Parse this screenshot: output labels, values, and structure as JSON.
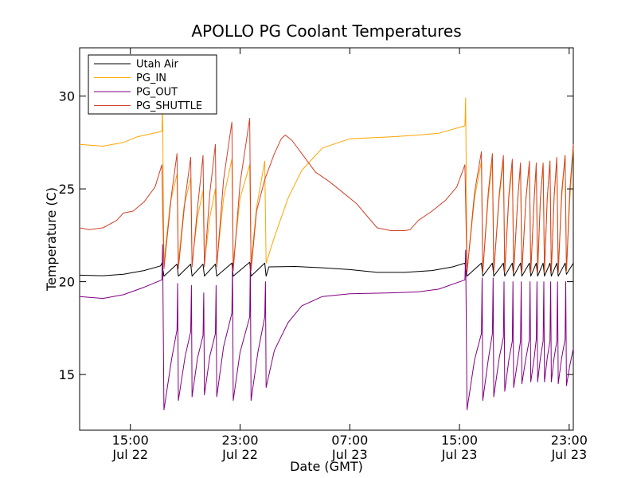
{
  "chart_data": {
    "type": "line",
    "title": "APOLLO PG Coolant Temperatures",
    "xlabel": "Date (GMT)",
    "ylabel": "Temperature (C)",
    "x_unit": "hours since Jul 22 00:00 GMT",
    "xlim": [
      11.3,
      47.3
    ],
    "ylim": [
      12,
      32.6
    ],
    "grid": false,
    "legend_position": "top-left",
    "x_ticks": [
      {
        "value": 15,
        "line1": "15:00",
        "line2": "Jul 22"
      },
      {
        "value": 23,
        "line1": "23:00",
        "line2": "Jul 22"
      },
      {
        "value": 31,
        "line1": "07:00",
        "line2": "Jul 23"
      },
      {
        "value": 39,
        "line1": "15:00",
        "line2": "Jul 23"
      },
      {
        "value": 47,
        "line1": "23:00",
        "line2": "Jul 23"
      }
    ],
    "y_ticks": [
      {
        "value": 15,
        "label": "15"
      },
      {
        "value": 20,
        "label": "20"
      },
      {
        "value": 25,
        "label": "25"
      },
      {
        "value": 30,
        "label": "30"
      }
    ],
    "series": [
      {
        "name": "Utah Air",
        "color": "#000000",
        "points": [
          [
            11.3,
            20.35
          ],
          [
            13.0,
            20.32
          ],
          [
            14.5,
            20.4
          ],
          [
            16.0,
            20.6
          ],
          [
            17.2,
            20.85
          ],
          [
            17.3,
            21.0
          ],
          [
            17.45,
            20.3
          ],
          [
            18.4,
            20.95
          ],
          [
            18.5,
            20.3
          ],
          [
            19.4,
            20.95
          ],
          [
            19.5,
            20.3
          ],
          [
            20.3,
            20.95
          ],
          [
            20.4,
            20.3
          ],
          [
            21.2,
            20.95
          ],
          [
            21.3,
            20.3
          ],
          [
            22.4,
            21.0
          ],
          [
            22.5,
            20.3
          ],
          [
            23.7,
            21.05
          ],
          [
            23.8,
            20.3
          ],
          [
            24.8,
            21.0
          ],
          [
            24.9,
            20.3
          ],
          [
            25.1,
            20.8
          ],
          [
            27.0,
            20.82
          ],
          [
            29.0,
            20.75
          ],
          [
            31.0,
            20.65
          ],
          [
            33.0,
            20.5
          ],
          [
            35.0,
            20.5
          ],
          [
            37.0,
            20.6
          ],
          [
            38.5,
            20.8
          ],
          [
            39.4,
            21.0
          ],
          [
            39.55,
            20.3
          ],
          [
            40.6,
            21.0
          ],
          [
            40.7,
            20.3
          ],
          [
            41.4,
            21.0
          ],
          [
            41.5,
            20.3
          ],
          [
            42.2,
            21.0
          ],
          [
            42.3,
            20.3
          ],
          [
            42.85,
            21.0
          ],
          [
            42.95,
            20.3
          ],
          [
            43.45,
            21.0
          ],
          [
            43.55,
            20.3
          ],
          [
            44.1,
            21.0
          ],
          [
            44.2,
            20.3
          ],
          [
            44.6,
            21.0
          ],
          [
            44.7,
            20.3
          ],
          [
            45.1,
            21.0
          ],
          [
            45.2,
            20.3
          ],
          [
            45.6,
            21.0
          ],
          [
            45.7,
            20.3
          ],
          [
            46.1,
            21.0
          ],
          [
            46.2,
            20.3
          ],
          [
            46.7,
            21.0
          ],
          [
            46.8,
            20.4
          ],
          [
            47.3,
            21.0
          ]
        ]
      },
      {
        "name": "PG_IN",
        "color": "#ffa500",
        "points": [
          [
            11.3,
            27.4
          ],
          [
            13.0,
            27.3
          ],
          [
            14.5,
            27.5
          ],
          [
            15.5,
            27.8
          ],
          [
            17.3,
            28.1
          ],
          [
            17.35,
            29.3
          ],
          [
            17.45,
            21.0
          ],
          [
            17.9,
            24.2
          ],
          [
            18.4,
            25.8
          ],
          [
            18.5,
            21.0
          ],
          [
            18.9,
            24.0
          ],
          [
            19.4,
            25.6
          ],
          [
            19.5,
            21.0
          ],
          [
            19.9,
            23.5
          ],
          [
            20.3,
            24.9
          ],
          [
            20.4,
            21.0
          ],
          [
            20.8,
            23.5
          ],
          [
            21.2,
            25.0
          ],
          [
            21.3,
            21.0
          ],
          [
            21.8,
            24.5
          ],
          [
            22.4,
            26.6
          ],
          [
            22.5,
            21.0
          ],
          [
            23.0,
            24.5
          ],
          [
            23.7,
            26.3
          ],
          [
            23.8,
            21.0
          ],
          [
            24.2,
            24.0
          ],
          [
            24.8,
            26.5
          ],
          [
            24.9,
            21.0
          ],
          [
            25.5,
            22.4
          ],
          [
            26.5,
            24.5
          ],
          [
            27.5,
            26.0
          ],
          [
            29.0,
            27.2
          ],
          [
            31.0,
            27.7
          ],
          [
            34.0,
            27.8
          ],
          [
            36.0,
            27.9
          ],
          [
            37.5,
            28.0
          ],
          [
            39.4,
            28.4
          ],
          [
            39.45,
            29.9
          ],
          [
            39.55,
            20.5
          ],
          [
            40.1,
            24.5
          ],
          [
            40.6,
            26.5
          ],
          [
            40.7,
            20.5
          ],
          [
            41.1,
            24.5
          ],
          [
            41.4,
            26.5
          ],
          [
            41.5,
            20.5
          ],
          [
            41.9,
            24.5
          ],
          [
            42.2,
            26.5
          ],
          [
            42.3,
            20.5
          ],
          [
            42.6,
            24.5
          ],
          [
            42.85,
            26.2
          ],
          [
            42.95,
            20.5
          ],
          [
            43.25,
            24.5
          ],
          [
            43.45,
            26.2
          ],
          [
            43.55,
            20.5
          ],
          [
            43.85,
            24.5
          ],
          [
            44.1,
            26.3
          ],
          [
            44.2,
            20.5
          ],
          [
            44.45,
            24.5
          ],
          [
            44.6,
            26.3
          ],
          [
            44.7,
            20.5
          ],
          [
            44.9,
            24.5
          ],
          [
            45.1,
            26.3
          ],
          [
            45.2,
            20.5
          ],
          [
            45.4,
            24.5
          ],
          [
            45.6,
            26.5
          ],
          [
            45.7,
            20.5
          ],
          [
            45.9,
            24.5
          ],
          [
            46.1,
            26.6
          ],
          [
            46.2,
            20.5
          ],
          [
            46.45,
            24.5
          ],
          [
            46.7,
            26.8
          ],
          [
            46.8,
            20.5
          ],
          [
            47.05,
            24.5
          ],
          [
            47.3,
            27.2
          ]
        ]
      },
      {
        "name": "PG_OUT",
        "color": "#800080",
        "points": [
          [
            11.3,
            19.2
          ],
          [
            13.0,
            19.1
          ],
          [
            14.5,
            19.3
          ],
          [
            16.0,
            19.7
          ],
          [
            17.3,
            20.1
          ],
          [
            17.35,
            22.0
          ],
          [
            17.4,
            17.3
          ],
          [
            17.45,
            13.1
          ],
          [
            18.0,
            15.8
          ],
          [
            18.4,
            17.4
          ],
          [
            18.45,
            19.9
          ],
          [
            18.5,
            13.6
          ],
          [
            19.0,
            16.0
          ],
          [
            19.4,
            17.3
          ],
          [
            19.45,
            19.8
          ],
          [
            19.5,
            13.8
          ],
          [
            19.9,
            15.9
          ],
          [
            20.3,
            17.1
          ],
          [
            20.35,
            19.4
          ],
          [
            20.4,
            13.9
          ],
          [
            20.8,
            16.0
          ],
          [
            21.2,
            17.2
          ],
          [
            21.25,
            19.8
          ],
          [
            21.3,
            13.8
          ],
          [
            21.8,
            16.5
          ],
          [
            22.4,
            18.3
          ],
          [
            22.45,
            21.0
          ],
          [
            22.5,
            13.6
          ],
          [
            23.0,
            16.2
          ],
          [
            23.7,
            18.1
          ],
          [
            23.75,
            21.0
          ],
          [
            23.8,
            13.6
          ],
          [
            24.3,
            16.2
          ],
          [
            24.8,
            18.1
          ],
          [
            24.85,
            20.0
          ],
          [
            24.9,
            14.3
          ],
          [
            25.5,
            16.3
          ],
          [
            26.5,
            17.8
          ],
          [
            27.5,
            18.7
          ],
          [
            29.0,
            19.2
          ],
          [
            31.0,
            19.35
          ],
          [
            34.0,
            19.4
          ],
          [
            36.0,
            19.45
          ],
          [
            37.5,
            19.6
          ],
          [
            39.4,
            20.1
          ],
          [
            39.45,
            21.7
          ],
          [
            39.5,
            17.3
          ],
          [
            39.55,
            13.1
          ],
          [
            40.1,
            15.8
          ],
          [
            40.6,
            17.2
          ],
          [
            40.65,
            20.2
          ],
          [
            40.7,
            13.6
          ],
          [
            41.1,
            15.8
          ],
          [
            41.4,
            17.2
          ],
          [
            41.45,
            20.2
          ],
          [
            41.5,
            13.8
          ],
          [
            41.9,
            15.9
          ],
          [
            42.2,
            17.0
          ],
          [
            42.25,
            20.0
          ],
          [
            42.3,
            14.1
          ],
          [
            42.6,
            15.8
          ],
          [
            42.85,
            16.8
          ],
          [
            42.9,
            20.0
          ],
          [
            42.95,
            14.3
          ],
          [
            43.25,
            15.8
          ],
          [
            43.45,
            16.8
          ],
          [
            43.5,
            20.0
          ],
          [
            43.55,
            14.5
          ],
          [
            43.85,
            15.9
          ],
          [
            44.1,
            16.9
          ],
          [
            44.15,
            20.0
          ],
          [
            44.2,
            14.6
          ],
          [
            44.45,
            15.9
          ],
          [
            44.6,
            16.9
          ],
          [
            44.65,
            20.0
          ],
          [
            44.7,
            14.6
          ],
          [
            44.9,
            15.9
          ],
          [
            45.1,
            16.8
          ],
          [
            45.15,
            20.0
          ],
          [
            45.2,
            14.6
          ],
          [
            45.4,
            15.9
          ],
          [
            45.6,
            16.8
          ],
          [
            45.65,
            20.0
          ],
          [
            45.7,
            14.6
          ],
          [
            45.9,
            15.9
          ],
          [
            46.1,
            16.8
          ],
          [
            46.15,
            20.0
          ],
          [
            46.2,
            14.5
          ],
          [
            46.45,
            15.9
          ],
          [
            46.7,
            16.9
          ],
          [
            46.75,
            20.0
          ],
          [
            46.8,
            14.4
          ],
          [
            47.05,
            15.5
          ],
          [
            47.3,
            16.4
          ]
        ]
      },
      {
        "name": "PG_SHUTTLE",
        "color": "#d2412a",
        "points": [
          [
            11.3,
            22.9
          ],
          [
            12.0,
            22.8
          ],
          [
            13.0,
            22.9
          ],
          [
            14.0,
            23.3
          ],
          [
            14.5,
            23.7
          ],
          [
            15.2,
            23.8
          ],
          [
            16.0,
            24.3
          ],
          [
            16.8,
            25.1
          ],
          [
            17.3,
            26.3
          ],
          [
            17.45,
            20.7
          ],
          [
            18.0,
            24.7
          ],
          [
            18.4,
            26.9
          ],
          [
            18.5,
            20.7
          ],
          [
            19.0,
            24.5
          ],
          [
            19.4,
            26.7
          ],
          [
            19.5,
            20.8
          ],
          [
            19.9,
            24.0
          ],
          [
            20.3,
            26.8
          ],
          [
            20.4,
            20.8
          ],
          [
            20.8,
            24.8
          ],
          [
            21.2,
            27.4
          ],
          [
            21.3,
            20.8
          ],
          [
            21.8,
            25.5
          ],
          [
            22.4,
            28.6
          ],
          [
            22.5,
            20.6
          ],
          [
            23.0,
            25.3
          ],
          [
            23.7,
            28.8
          ],
          [
            23.8,
            20.6
          ],
          [
            24.2,
            23.8
          ],
          [
            24.8,
            25.5
          ],
          [
            25.5,
            26.9
          ],
          [
            26.0,
            27.7
          ],
          [
            26.3,
            27.9
          ],
          [
            26.8,
            27.6
          ],
          [
            27.5,
            26.9
          ],
          [
            28.5,
            25.9
          ],
          [
            29.5,
            25.4
          ],
          [
            30.5,
            24.8
          ],
          [
            31.5,
            24.2
          ],
          [
            32.3,
            23.5
          ],
          [
            33.0,
            22.9
          ],
          [
            34.0,
            22.75
          ],
          [
            35.0,
            22.75
          ],
          [
            35.4,
            22.8
          ],
          [
            36.0,
            23.3
          ],
          [
            37.0,
            23.8
          ],
          [
            38.0,
            24.4
          ],
          [
            38.8,
            25.1
          ],
          [
            39.4,
            26.3
          ],
          [
            39.55,
            20.5
          ],
          [
            40.1,
            24.8
          ],
          [
            40.6,
            27.0
          ],
          [
            40.7,
            20.5
          ],
          [
            41.1,
            24.8
          ],
          [
            41.4,
            26.9
          ],
          [
            41.5,
            20.5
          ],
          [
            41.9,
            24.7
          ],
          [
            42.2,
            26.8
          ],
          [
            42.3,
            20.5
          ],
          [
            42.6,
            24.7
          ],
          [
            42.85,
            26.6
          ],
          [
            42.95,
            20.5
          ],
          [
            43.25,
            24.5
          ],
          [
            43.45,
            26.4
          ],
          [
            43.55,
            20.5
          ],
          [
            43.85,
            24.5
          ],
          [
            44.1,
            26.5
          ],
          [
            44.2,
            20.5
          ],
          [
            44.45,
            24.5
          ],
          [
            44.6,
            26.4
          ],
          [
            44.7,
            20.5
          ],
          [
            44.9,
            24.5
          ],
          [
            45.1,
            26.4
          ],
          [
            45.2,
            20.5
          ],
          [
            45.4,
            24.5
          ],
          [
            45.6,
            26.5
          ],
          [
            45.7,
            20.5
          ],
          [
            45.9,
            24.6
          ],
          [
            46.1,
            26.7
          ],
          [
            46.2,
            20.5
          ],
          [
            46.45,
            24.8
          ],
          [
            46.7,
            26.8
          ],
          [
            46.8,
            20.6
          ],
          [
            47.05,
            25.0
          ],
          [
            47.3,
            27.4
          ]
        ]
      }
    ]
  }
}
